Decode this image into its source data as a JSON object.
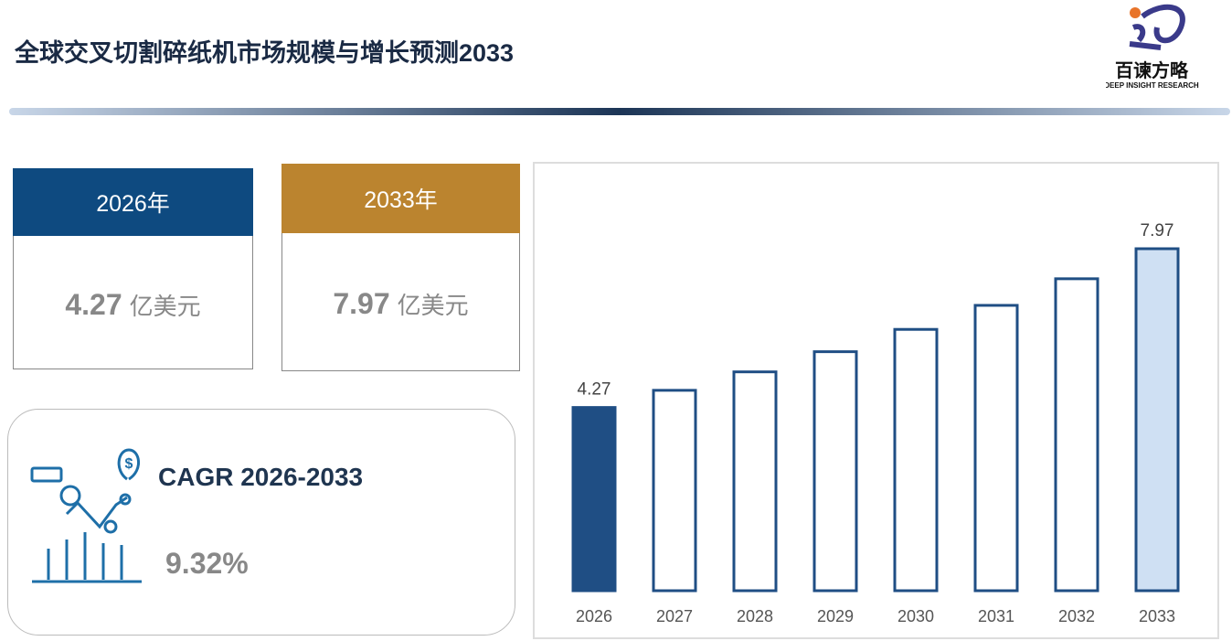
{
  "header": {
    "title": "全球交叉切割碎纸机市场规模与增长预测2033",
    "logo_text": "百谏方略",
    "logo_subtext": "DEEP INSIGHT RESEARCH"
  },
  "cards": [
    {
      "year": "2026年",
      "value": "4.27",
      "unit": "亿美元",
      "color": "#0e4a80"
    },
    {
      "year": "2033年",
      "value": "7.97",
      "unit": "亿美元",
      "color": "#bb842f"
    }
  ],
  "cagr": {
    "label": "CAGR 2026-2033",
    "value": "9.32%"
  },
  "chart_data": {
    "type": "bar",
    "categories": [
      "2026",
      "2027",
      "2028",
      "2029",
      "2030",
      "2031",
      "2032",
      "2033"
    ],
    "values": [
      4.27,
      4.67,
      5.1,
      5.57,
      6.09,
      6.65,
      7.27,
      7.97
    ],
    "bar_colors": [
      "#1f4e84",
      "#ffffff",
      "#ffffff",
      "#ffffff",
      "#ffffff",
      "#ffffff",
      "#ffffff",
      "#cfe0f3"
    ],
    "stroke": "#1f4e84",
    "data_labels": "first-last"
  }
}
